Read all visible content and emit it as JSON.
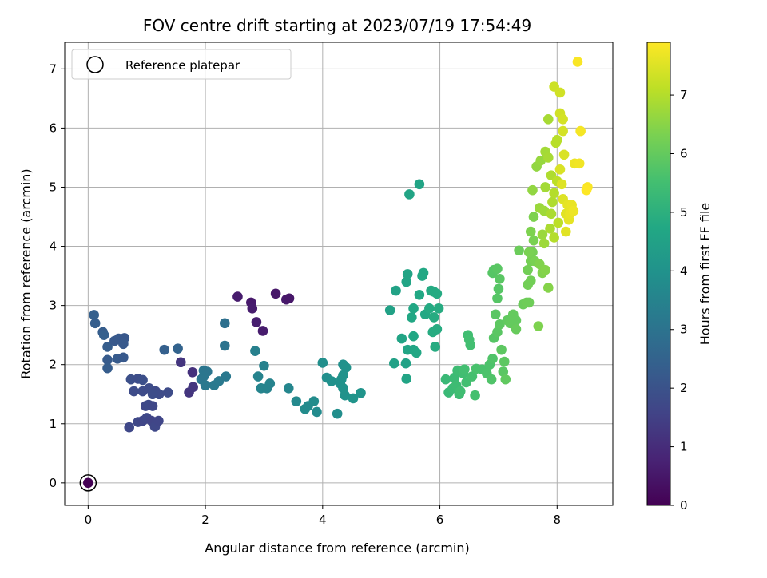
{
  "chart_data": {
    "type": "scatter",
    "title": "FOV centre drift starting at 2023/07/19 17:54:49",
    "xlabel": "Angular distance from reference (arcmin)",
    "ylabel": "Rotation from reference (arcmin)",
    "xlim": [
      -0.4,
      8.95
    ],
    "ylim": [
      -0.38,
      7.45
    ],
    "xticks": [
      "0",
      "2",
      "4",
      "6",
      "8"
    ],
    "yticks": [
      "0",
      "1",
      "2",
      "3",
      "4",
      "5",
      "6",
      "7"
    ],
    "grid": true,
    "legend": {
      "position": "top-left",
      "entries": [
        "Reference platepar"
      ]
    },
    "reference_point": {
      "x": 0,
      "y": 0
    },
    "colorbar": {
      "label": "Hours from first FF file",
      "range": [
        0,
        7.9
      ],
      "ticks": [
        "0",
        "1",
        "2",
        "3",
        "4",
        "5",
        "6",
        "7"
      ],
      "colormap": "viridis"
    },
    "points": [
      {
        "x": 0.0,
        "y": 0.0,
        "c": 0.0
      },
      {
        "x": 2.55,
        "y": 3.15,
        "c": 0.6
      },
      {
        "x": 2.78,
        "y": 3.05,
        "c": 0.55
      },
      {
        "x": 2.8,
        "y": 2.95,
        "c": 0.6
      },
      {
        "x": 2.87,
        "y": 2.72,
        "c": 0.65
      },
      {
        "x": 2.98,
        "y": 2.57,
        "c": 0.6
      },
      {
        "x": 3.2,
        "y": 3.2,
        "c": 0.5
      },
      {
        "x": 3.38,
        "y": 3.1,
        "c": 0.55
      },
      {
        "x": 3.43,
        "y": 3.12,
        "c": 0.5
      },
      {
        "x": 1.72,
        "y": 1.53,
        "c": 1.2
      },
      {
        "x": 1.79,
        "y": 1.62,
        "c": 1.25
      },
      {
        "x": 1.78,
        "y": 1.87,
        "c": 1.1
      },
      {
        "x": 1.58,
        "y": 2.04,
        "c": 1.2
      },
      {
        "x": 0.7,
        "y": 0.94,
        "c": 1.7
      },
      {
        "x": 0.85,
        "y": 1.03,
        "c": 1.7
      },
      {
        "x": 0.93,
        "y": 1.05,
        "c": 1.65
      },
      {
        "x": 1.0,
        "y": 1.1,
        "c": 1.7
      },
      {
        "x": 1.08,
        "y": 1.05,
        "c": 1.6
      },
      {
        "x": 1.14,
        "y": 0.95,
        "c": 1.7
      },
      {
        "x": 1.2,
        "y": 1.05,
        "c": 1.65
      },
      {
        "x": 0.98,
        "y": 1.3,
        "c": 1.7
      },
      {
        "x": 1.03,
        "y": 1.32,
        "c": 1.75
      },
      {
        "x": 1.1,
        "y": 1.3,
        "c": 1.7
      },
      {
        "x": 0.78,
        "y": 1.55,
        "c": 1.8
      },
      {
        "x": 0.93,
        "y": 1.55,
        "c": 1.8
      },
      {
        "x": 1.04,
        "y": 1.6,
        "c": 1.8
      },
      {
        "x": 1.15,
        "y": 1.55,
        "c": 1.75
      },
      {
        "x": 1.21,
        "y": 1.5,
        "c": 1.8
      },
      {
        "x": 1.1,
        "y": 1.5,
        "c": 1.85
      },
      {
        "x": 1.36,
        "y": 1.53,
        "c": 1.8
      },
      {
        "x": 0.73,
        "y": 1.75,
        "c": 1.9
      },
      {
        "x": 0.85,
        "y": 1.76,
        "c": 1.85
      },
      {
        "x": 0.93,
        "y": 1.74,
        "c": 1.9
      },
      {
        "x": 0.1,
        "y": 2.84,
        "c": 2.4
      },
      {
        "x": 0.12,
        "y": 2.7,
        "c": 2.35
      },
      {
        "x": 0.25,
        "y": 2.55,
        "c": 2.3
      },
      {
        "x": 0.27,
        "y": 2.5,
        "c": 2.4
      },
      {
        "x": 0.33,
        "y": 2.3,
        "c": 2.3
      },
      {
        "x": 0.33,
        "y": 2.08,
        "c": 2.25
      },
      {
        "x": 0.33,
        "y": 1.94,
        "c": 2.3
      },
      {
        "x": 0.45,
        "y": 2.4,
        "c": 2.2
      },
      {
        "x": 0.52,
        "y": 2.44,
        "c": 2.2
      },
      {
        "x": 0.62,
        "y": 2.45,
        "c": 2.15
      },
      {
        "x": 0.6,
        "y": 2.35,
        "c": 2.2
      },
      {
        "x": 0.5,
        "y": 2.1,
        "c": 2.25
      },
      {
        "x": 0.6,
        "y": 2.12,
        "c": 2.2
      },
      {
        "x": 1.3,
        "y": 2.25,
        "c": 2.4
      },
      {
        "x": 1.53,
        "y": 2.27,
        "c": 2.5
      },
      {
        "x": 2.33,
        "y": 2.7,
        "c": 2.9
      },
      {
        "x": 2.33,
        "y": 2.32,
        "c": 3.0
      },
      {
        "x": 1.97,
        "y": 1.9,
        "c": 3.1
      },
      {
        "x": 2.03,
        "y": 1.88,
        "c": 3.05
      },
      {
        "x": 1.97,
        "y": 1.8,
        "c": 3.1
      },
      {
        "x": 1.93,
        "y": 1.75,
        "c": 3.1
      },
      {
        "x": 2.0,
        "y": 1.65,
        "c": 3.15
      },
      {
        "x": 2.15,
        "y": 1.65,
        "c": 3.2
      },
      {
        "x": 2.23,
        "y": 1.72,
        "c": 3.2
      },
      {
        "x": 2.35,
        "y": 1.8,
        "c": 3.15
      },
      {
        "x": 2.85,
        "y": 2.23,
        "c": 3.4
      },
      {
        "x": 2.9,
        "y": 1.8,
        "c": 3.5
      },
      {
        "x": 2.95,
        "y": 1.6,
        "c": 3.55
      },
      {
        "x": 3.05,
        "y": 1.6,
        "c": 3.5
      },
      {
        "x": 3.1,
        "y": 1.68,
        "c": 3.5
      },
      {
        "x": 3.0,
        "y": 1.98,
        "c": 3.45
      },
      {
        "x": 3.42,
        "y": 1.6,
        "c": 3.6
      },
      {
        "x": 3.55,
        "y": 1.38,
        "c": 3.7
      },
      {
        "x": 3.7,
        "y": 1.25,
        "c": 3.8
      },
      {
        "x": 3.75,
        "y": 1.3,
        "c": 3.75
      },
      {
        "x": 3.9,
        "y": 1.2,
        "c": 3.75
      },
      {
        "x": 3.85,
        "y": 1.38,
        "c": 3.8
      },
      {
        "x": 4.0,
        "y": 2.03,
        "c": 3.9
      },
      {
        "x": 4.07,
        "y": 1.78,
        "c": 3.9
      },
      {
        "x": 4.15,
        "y": 1.72,
        "c": 3.95
      },
      {
        "x": 4.25,
        "y": 1.17,
        "c": 3.85
      },
      {
        "x": 4.35,
        "y": 2.0,
        "c": 3.95
      },
      {
        "x": 4.4,
        "y": 1.95,
        "c": 4.0
      },
      {
        "x": 4.35,
        "y": 1.82,
        "c": 4.0
      },
      {
        "x": 4.3,
        "y": 1.68,
        "c": 3.95
      },
      {
        "x": 4.35,
        "y": 1.6,
        "c": 4.0
      },
      {
        "x": 4.38,
        "y": 1.48,
        "c": 4.0
      },
      {
        "x": 4.32,
        "y": 1.75,
        "c": 4.0
      },
      {
        "x": 4.52,
        "y": 1.43,
        "c": 4.05
      },
      {
        "x": 4.65,
        "y": 1.52,
        "c": 4.05
      },
      {
        "x": 5.15,
        "y": 2.92,
        "c": 4.5
      },
      {
        "x": 5.25,
        "y": 3.25,
        "c": 4.55
      },
      {
        "x": 5.22,
        "y": 2.02,
        "c": 4.5
      },
      {
        "x": 5.35,
        "y": 2.44,
        "c": 4.6
      },
      {
        "x": 5.42,
        "y": 2.02,
        "c": 4.55
      },
      {
        "x": 5.43,
        "y": 1.76,
        "c": 4.6
      },
      {
        "x": 5.43,
        "y": 3.4,
        "c": 4.6
      },
      {
        "x": 5.45,
        "y": 3.53,
        "c": 4.6
      },
      {
        "x": 5.45,
        "y": 2.25,
        "c": 4.65
      },
      {
        "x": 5.55,
        "y": 2.25,
        "c": 4.65
      },
      {
        "x": 5.55,
        "y": 2.48,
        "c": 4.7
      },
      {
        "x": 5.52,
        "y": 2.8,
        "c": 4.7
      },
      {
        "x": 5.55,
        "y": 2.95,
        "c": 4.7
      },
      {
        "x": 5.6,
        "y": 2.2,
        "c": 4.7
      },
      {
        "x": 5.65,
        "y": 3.18,
        "c": 4.75
      },
      {
        "x": 5.7,
        "y": 3.5,
        "c": 4.75
      },
      {
        "x": 5.72,
        "y": 3.55,
        "c": 4.75
      },
      {
        "x": 5.75,
        "y": 2.85,
        "c": 4.75
      },
      {
        "x": 5.82,
        "y": 2.95,
        "c": 4.8
      },
      {
        "x": 5.85,
        "y": 3.25,
        "c": 4.8
      },
      {
        "x": 5.9,
        "y": 3.23,
        "c": 4.8
      },
      {
        "x": 5.95,
        "y": 3.2,
        "c": 4.8
      },
      {
        "x": 5.9,
        "y": 2.8,
        "c": 4.85
      },
      {
        "x": 5.88,
        "y": 2.55,
        "c": 4.85
      },
      {
        "x": 5.92,
        "y": 2.3,
        "c": 4.85
      },
      {
        "x": 5.95,
        "y": 2.6,
        "c": 4.85
      },
      {
        "x": 5.98,
        "y": 2.95,
        "c": 4.85
      },
      {
        "x": 5.48,
        "y": 4.88,
        "c": 4.6
      },
      {
        "x": 5.65,
        "y": 5.05,
        "c": 4.6
      },
      {
        "x": 6.1,
        "y": 1.75,
        "c": 5.3
      },
      {
        "x": 6.15,
        "y": 1.53,
        "c": 5.3
      },
      {
        "x": 6.22,
        "y": 1.6,
        "c": 5.35
      },
      {
        "x": 6.25,
        "y": 1.78,
        "c": 5.35
      },
      {
        "x": 6.28,
        "y": 1.65,
        "c": 5.4
      },
      {
        "x": 6.3,
        "y": 1.9,
        "c": 5.4
      },
      {
        "x": 6.33,
        "y": 1.5,
        "c": 5.4
      },
      {
        "x": 6.35,
        "y": 1.55,
        "c": 5.45
      },
      {
        "x": 6.4,
        "y": 1.85,
        "c": 5.45
      },
      {
        "x": 6.42,
        "y": 1.92,
        "c": 5.5
      },
      {
        "x": 6.45,
        "y": 1.7,
        "c": 5.5
      },
      {
        "x": 6.48,
        "y": 2.5,
        "c": 5.45
      },
      {
        "x": 6.52,
        "y": 2.33,
        "c": 5.5
      },
      {
        "x": 6.5,
        "y": 2.42,
        "c": 5.5
      },
      {
        "x": 6.55,
        "y": 1.8,
        "c": 5.55
      },
      {
        "x": 6.6,
        "y": 1.48,
        "c": 5.55
      },
      {
        "x": 6.62,
        "y": 1.93,
        "c": 5.6
      },
      {
        "x": 6.72,
        "y": 1.92,
        "c": 5.6
      },
      {
        "x": 6.8,
        "y": 1.85,
        "c": 5.65
      },
      {
        "x": 6.85,
        "y": 2.0,
        "c": 5.65
      },
      {
        "x": 6.88,
        "y": 1.75,
        "c": 5.7
      },
      {
        "x": 6.9,
        "y": 2.1,
        "c": 5.7
      },
      {
        "x": 6.9,
        "y": 3.55,
        "c": 5.8
      },
      {
        "x": 6.92,
        "y": 3.6,
        "c": 5.8
      },
      {
        "x": 6.98,
        "y": 3.62,
        "c": 5.85
      },
      {
        "x": 7.02,
        "y": 3.45,
        "c": 5.85
      },
      {
        "x": 7.0,
        "y": 3.28,
        "c": 5.8
      },
      {
        "x": 6.98,
        "y": 3.12,
        "c": 5.8
      },
      {
        "x": 6.95,
        "y": 2.85,
        "c": 5.85
      },
      {
        "x": 6.92,
        "y": 2.45,
        "c": 5.8
      },
      {
        "x": 6.98,
        "y": 2.55,
        "c": 5.85
      },
      {
        "x": 7.02,
        "y": 2.68,
        "c": 5.9
      },
      {
        "x": 7.05,
        "y": 2.25,
        "c": 5.9
      },
      {
        "x": 7.08,
        "y": 1.88,
        "c": 5.85
      },
      {
        "x": 7.1,
        "y": 2.05,
        "c": 5.9
      },
      {
        "x": 7.12,
        "y": 1.75,
        "c": 5.95
      },
      {
        "x": 7.15,
        "y": 2.75,
        "c": 5.95
      },
      {
        "x": 7.2,
        "y": 2.7,
        "c": 6.0
      },
      {
        "x": 7.25,
        "y": 2.85,
        "c": 6.0
      },
      {
        "x": 7.3,
        "y": 2.75,
        "c": 6.0
      },
      {
        "x": 7.3,
        "y": 2.6,
        "c": 6.05
      },
      {
        "x": 7.35,
        "y": 3.93,
        "c": 6.1
      },
      {
        "x": 7.42,
        "y": 3.02,
        "c": 6.1
      },
      {
        "x": 7.48,
        "y": 3.05,
        "c": 6.15
      },
      {
        "x": 7.52,
        "y": 3.05,
        "c": 6.15
      },
      {
        "x": 7.5,
        "y": 3.35,
        "c": 6.2
      },
      {
        "x": 7.5,
        "y": 3.6,
        "c": 6.2
      },
      {
        "x": 7.55,
        "y": 3.42,
        "c": 6.2
      },
      {
        "x": 7.55,
        "y": 3.75,
        "c": 6.25
      },
      {
        "x": 7.58,
        "y": 3.9,
        "c": 6.25
      },
      {
        "x": 7.62,
        "y": 3.75,
        "c": 6.3
      },
      {
        "x": 7.52,
        "y": 3.9,
        "c": 6.3
      },
      {
        "x": 7.6,
        "y": 4.1,
        "c": 6.3
      },
      {
        "x": 7.55,
        "y": 4.25,
        "c": 6.35
      },
      {
        "x": 7.6,
        "y": 4.5,
        "c": 6.35
      },
      {
        "x": 7.68,
        "y": 2.65,
        "c": 6.35
      },
      {
        "x": 7.7,
        "y": 3.7,
        "c": 6.4
      },
      {
        "x": 7.75,
        "y": 3.55,
        "c": 6.4
      },
      {
        "x": 7.8,
        "y": 3.6,
        "c": 6.45
      },
      {
        "x": 7.85,
        "y": 3.3,
        "c": 6.45
      },
      {
        "x": 7.58,
        "y": 4.95,
        "c": 6.6
      },
      {
        "x": 7.65,
        "y": 5.35,
        "c": 6.6
      },
      {
        "x": 7.72,
        "y": 5.45,
        "c": 6.65
      },
      {
        "x": 7.7,
        "y": 4.65,
        "c": 6.7
      },
      {
        "x": 7.75,
        "y": 4.2,
        "c": 6.7
      },
      {
        "x": 7.78,
        "y": 4.05,
        "c": 6.75
      },
      {
        "x": 7.78,
        "y": 4.6,
        "c": 6.75
      },
      {
        "x": 7.8,
        "y": 5.0,
        "c": 6.8
      },
      {
        "x": 7.8,
        "y": 5.6,
        "c": 6.8
      },
      {
        "x": 7.85,
        "y": 5.5,
        "c": 6.85
      },
      {
        "x": 7.85,
        "y": 6.15,
        "c": 6.85
      },
      {
        "x": 7.88,
        "y": 4.3,
        "c": 6.9
      },
      {
        "x": 7.9,
        "y": 4.55,
        "c": 6.9
      },
      {
        "x": 7.9,
        "y": 5.2,
        "c": 6.95
      },
      {
        "x": 7.92,
        "y": 4.75,
        "c": 6.95
      },
      {
        "x": 7.95,
        "y": 4.15,
        "c": 7.0
      },
      {
        "x": 7.95,
        "y": 4.9,
        "c": 7.0
      },
      {
        "x": 7.98,
        "y": 5.75,
        "c": 7.05
      },
      {
        "x": 8.0,
        "y": 5.8,
        "c": 7.05
      },
      {
        "x": 8.0,
        "y": 5.1,
        "c": 7.1
      },
      {
        "x": 8.02,
        "y": 4.4,
        "c": 7.1
      },
      {
        "x": 7.95,
        "y": 6.7,
        "c": 7.3
      },
      {
        "x": 8.05,
        "y": 6.6,
        "c": 7.35
      },
      {
        "x": 8.05,
        "y": 6.25,
        "c": 7.35
      },
      {
        "x": 8.1,
        "y": 6.15,
        "c": 7.4
      },
      {
        "x": 8.1,
        "y": 5.95,
        "c": 7.4
      },
      {
        "x": 8.12,
        "y": 5.55,
        "c": 7.45
      },
      {
        "x": 8.05,
        "y": 5.3,
        "c": 7.45
      },
      {
        "x": 8.08,
        "y": 5.05,
        "c": 7.5
      },
      {
        "x": 8.1,
        "y": 4.8,
        "c": 7.5
      },
      {
        "x": 8.15,
        "y": 4.55,
        "c": 7.55
      },
      {
        "x": 8.15,
        "y": 4.25,
        "c": 7.55
      },
      {
        "x": 8.18,
        "y": 4.7,
        "c": 7.6
      },
      {
        "x": 8.2,
        "y": 4.45,
        "c": 7.6
      },
      {
        "x": 8.22,
        "y": 4.55,
        "c": 7.65
      },
      {
        "x": 8.25,
        "y": 4.7,
        "c": 7.65
      },
      {
        "x": 8.28,
        "y": 4.6,
        "c": 7.7
      },
      {
        "x": 8.3,
        "y": 5.4,
        "c": 7.7
      },
      {
        "x": 8.38,
        "y": 5.4,
        "c": 7.75
      },
      {
        "x": 8.4,
        "y": 5.95,
        "c": 7.8
      },
      {
        "x": 8.35,
        "y": 7.12,
        "c": 7.85
      },
      {
        "x": 8.52,
        "y": 5.0,
        "c": 7.85
      },
      {
        "x": 8.5,
        "y": 4.95,
        "c": 7.9
      }
    ]
  }
}
